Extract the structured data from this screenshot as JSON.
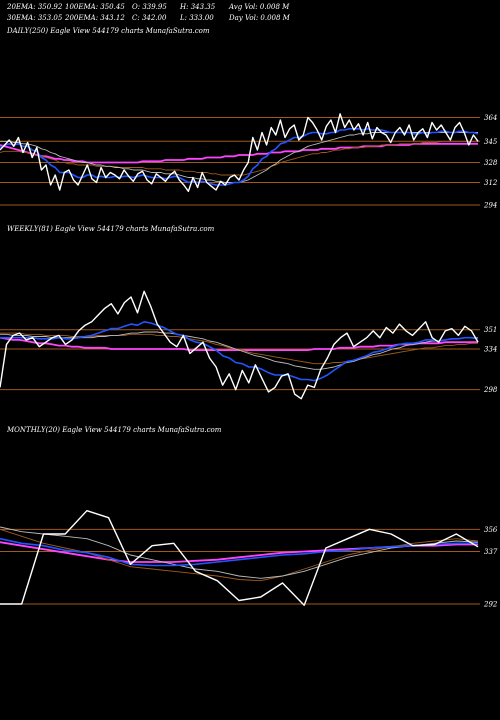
{
  "header": {
    "row1": [
      "20EMA: 350.92",
      "100EMA: 350.45",
      "O: 339.95",
      "H: 343.35",
      "Avg Vol: 0.008  M"
    ],
    "row2": [
      "30EMA: 353.05",
      "200EMA: 343.12",
      "C: 342.00",
      "L: 333.00",
      "Day Vol: 0.008  M"
    ]
  },
  "colors": {
    "price": "#ffffff",
    "ema_fast": "#2255ff",
    "ema_long": "#ff44ff",
    "ema_brown": "#a05a1a",
    "ema_grey": "#bbbbbb",
    "level_line": "#a05a1a"
  },
  "chart_data": [
    {
      "type": "line",
      "title": "DAILY(250) Eagle  View  544179 charts MunafaSutra.com",
      "levels": [
        "364",
        "345",
        "328",
        "312",
        "294"
      ],
      "level_values": [
        364,
        345,
        328,
        312,
        294
      ],
      "ylim": [
        282,
        378
      ],
      "series": [
        {
          "key": "price",
          "values": [
            338,
            342,
            346,
            341,
            348,
            336,
            344,
            332,
            340,
            322,
            326,
            310,
            318,
            306,
            320,
            322,
            314,
            310,
            318,
            326,
            315,
            312,
            324,
            316,
            320,
            318,
            315,
            322,
            317,
            313,
            319,
            321,
            314,
            311,
            319,
            316,
            313,
            318,
            321,
            314,
            310,
            305,
            316,
            308,
            320,
            312,
            309,
            306,
            313,
            310,
            316,
            318,
            314,
            322,
            328,
            348,
            338,
            352,
            342,
            356,
            350,
            362,
            348,
            355,
            358,
            346,
            350,
            364,
            360,
            354,
            346,
            357,
            362,
            352,
            367,
            356,
            362,
            354,
            359,
            350,
            360,
            347,
            356,
            352,
            350,
            344,
            352,
            356,
            350,
            358,
            346,
            352,
            355,
            348,
            360,
            354,
            358,
            352,
            346,
            356,
            360,
            352,
            342,
            350,
            345
          ]
        },
        {
          "key": "ema_fast",
          "values": [
            340,
            342,
            343,
            342,
            343,
            341,
            341,
            338,
            337,
            332,
            330,
            326,
            324,
            320,
            320,
            320,
            318,
            316,
            316,
            318,
            318,
            316,
            317,
            316,
            316,
            317,
            316,
            317,
            317,
            316,
            317,
            318,
            317,
            316,
            316,
            316,
            315,
            316,
            317,
            316,
            314,
            312,
            313,
            312,
            313,
            312,
            311,
            310,
            310,
            310,
            311,
            312,
            312,
            314,
            317,
            323,
            326,
            331,
            333,
            337,
            339,
            343,
            344,
            346,
            348,
            348,
            349,
            351,
            352,
            352,
            351,
            351,
            352,
            352,
            354,
            354,
            355,
            355,
            355,
            354,
            355,
            354,
            354,
            354,
            353,
            352,
            352,
            352,
            352,
            352,
            351,
            351,
            352,
            351,
            352,
            352,
            353,
            353,
            352,
            352,
            353,
            353,
            352,
            352,
            351
          ]
        },
        {
          "key": "ema_brown",
          "values": [
            336,
            337,
            337,
            337,
            337,
            336,
            336,
            335,
            334,
            333,
            332,
            331,
            330,
            328,
            328,
            327,
            327,
            326,
            326,
            326,
            326,
            325,
            325,
            325,
            325,
            325,
            324,
            324,
            324,
            324,
            324,
            324,
            323,
            323,
            323,
            323,
            322,
            322,
            322,
            322,
            321,
            321,
            321,
            320,
            320,
            320,
            319,
            319,
            318,
            318,
            318,
            318,
            318,
            318,
            319,
            320,
            321,
            322,
            323,
            325,
            326,
            328,
            329,
            330,
            331,
            332,
            333,
            334,
            335,
            335,
            336,
            336,
            337,
            338,
            338,
            339,
            339,
            340,
            340,
            340,
            341,
            341,
            341,
            342,
            342,
            342,
            342,
            343,
            343,
            343,
            343,
            343,
            344,
            344,
            344,
            344,
            345,
            345,
            345,
            345,
            345,
            345,
            345,
            345,
            345
          ]
        },
        {
          "key": "ema_grey",
          "values": [
            345,
            345,
            345,
            344,
            344,
            343,
            343,
            342,
            341,
            339,
            338,
            336,
            335,
            333,
            332,
            331,
            330,
            329,
            328,
            328,
            327,
            326,
            326,
            325,
            325,
            324,
            324,
            323,
            323,
            322,
            322,
            322,
            321,
            320,
            320,
            320,
            319,
            319,
            319,
            318,
            317,
            316,
            316,
            315,
            315,
            314,
            314,
            313,
            313,
            312,
            312,
            312,
            312,
            313,
            314,
            316,
            318,
            320,
            322,
            325,
            327,
            330,
            332,
            334,
            336,
            337,
            339,
            341,
            342,
            343,
            344,
            345,
            346,
            347,
            348,
            349,
            350,
            350,
            351,
            351,
            351,
            352,
            352,
            352,
            352,
            352,
            352,
            352,
            352,
            352,
            352,
            352,
            352,
            352,
            352,
            352,
            352,
            352,
            352,
            352,
            352,
            352,
            352,
            352,
            352
          ]
        },
        {
          "key": "ema_long",
          "values": [
            342,
            341,
            340,
            339,
            338,
            337,
            336,
            335,
            334,
            333,
            333,
            332,
            331,
            331,
            330,
            330,
            329,
            329,
            329,
            328,
            328,
            328,
            328,
            328,
            328,
            328,
            328,
            328,
            328,
            328,
            328,
            329,
            329,
            329,
            329,
            329,
            330,
            330,
            330,
            330,
            330,
            331,
            331,
            331,
            331,
            332,
            332,
            332,
            332,
            333,
            333,
            333,
            334,
            334,
            334,
            334,
            335,
            335,
            335,
            336,
            336,
            336,
            337,
            337,
            337,
            337,
            338,
            338,
            338,
            338,
            339,
            339,
            339,
            339,
            340,
            340,
            340,
            340,
            340,
            341,
            341,
            341,
            341,
            341,
            342,
            342,
            342,
            342,
            342,
            342,
            343,
            343,
            343,
            343,
            343,
            343,
            343,
            343,
            343,
            343,
            343,
            343,
            343,
            343,
            343
          ]
        }
      ]
    },
    {
      "type": "line",
      "title": "WEEKLY(81) Eagle  View  544179 charts MunafaSutra.com",
      "levels": [
        "351",
        "334",
        "298"
      ],
      "level_values": [
        351,
        334,
        298
      ],
      "ylim": [
        280,
        395
      ],
      "series": [
        {
          "key": "price",
          "values": [
            300,
            338,
            346,
            348,
            342,
            344,
            336,
            340,
            344,
            346,
            338,
            342,
            350,
            355,
            358,
            364,
            370,
            374,
            365,
            375,
            380,
            366,
            385,
            372,
            356,
            348,
            340,
            336,
            346,
            330,
            335,
            340,
            326,
            318,
            302,
            312,
            298,
            315,
            304,
            320,
            308,
            296,
            300,
            310,
            312,
            294,
            290,
            302,
            300,
            316,
            326,
            338,
            344,
            348,
            336,
            340,
            344,
            350,
            344,
            353,
            348,
            356,
            350,
            346,
            352,
            358,
            344,
            340,
            350,
            352,
            346,
            354,
            350,
            340
          ]
        },
        {
          "key": "ema_fast",
          "values": [
            344,
            344,
            344,
            344,
            344,
            344,
            343,
            343,
            343,
            344,
            343,
            343,
            344,
            345,
            346,
            348,
            350,
            352,
            352,
            354,
            356,
            355,
            358,
            357,
            355,
            353,
            350,
            347,
            346,
            342,
            340,
            339,
            336,
            333,
            328,
            326,
            322,
            321,
            318,
            318,
            316,
            313,
            311,
            311,
            311,
            309,
            307,
            307,
            306,
            308,
            311,
            315,
            319,
            323,
            324,
            326,
            328,
            331,
            332,
            334,
            336,
            338,
            339,
            339,
            340,
            342,
            342,
            341,
            342,
            343,
            343,
            344,
            344,
            343
          ]
        },
        {
          "key": "ema_brown",
          "values": [
            348,
            348,
            348,
            348,
            347,
            347,
            347,
            346,
            346,
            346,
            346,
            345,
            345,
            345,
            345,
            346,
            346,
            346,
            346,
            346,
            347,
            347,
            347,
            347,
            346,
            346,
            345,
            345,
            344,
            343,
            342,
            341,
            340,
            338,
            337,
            335,
            334,
            333,
            331,
            330,
            329,
            328,
            327,
            326,
            325,
            324,
            323,
            322,
            321,
            321,
            321,
            322,
            322,
            323,
            324,
            325,
            326,
            327,
            328,
            329,
            330,
            331,
            332,
            333,
            334,
            335,
            335,
            336,
            337,
            337,
            338,
            338,
            339,
            339
          ]
        },
        {
          "key": "ema_grey",
          "values": [
            347,
            347,
            346,
            346,
            346,
            345,
            345,
            345,
            344,
            344,
            344,
            344,
            344,
            344,
            344,
            345,
            345,
            346,
            346,
            347,
            348,
            348,
            349,
            349,
            349,
            348,
            348,
            347,
            346,
            345,
            344,
            343,
            341,
            340,
            338,
            336,
            334,
            332,
            330,
            328,
            327,
            325,
            323,
            322,
            321,
            319,
            318,
            317,
            316,
            316,
            317,
            318,
            320,
            322,
            323,
            325,
            327,
            329,
            330,
            332,
            334,
            335,
            337,
            338,
            339,
            340,
            341,
            341,
            342,
            343,
            343,
            344,
            344,
            344
          ]
        },
        {
          "key": "ema_long",
          "values": [
            344,
            343,
            342,
            342,
            341,
            340,
            339,
            339,
            338,
            337,
            337,
            336,
            336,
            335,
            335,
            335,
            335,
            334,
            334,
            334,
            334,
            334,
            334,
            334,
            334,
            334,
            334,
            334,
            334,
            333,
            333,
            333,
            333,
            333,
            333,
            333,
            333,
            333,
            333,
            333,
            333,
            333,
            333,
            333,
            333,
            333,
            333,
            333,
            334,
            334,
            334,
            334,
            335,
            335,
            335,
            336,
            336,
            336,
            337,
            337,
            337,
            338,
            338,
            338,
            339,
            339,
            339,
            339,
            340,
            340,
            340,
            340,
            340,
            340
          ]
        }
      ]
    },
    {
      "type": "line",
      "title": "MONTHLY(20) Eagle  View  544179 charts MunafaSutra.com",
      "levels": [
        "356",
        "337",
        "292"
      ],
      "level_values": [
        356,
        337,
        292
      ],
      "ylim": [
        280,
        400
      ],
      "series": [
        {
          "key": "price",
          "values": [
            292,
            292,
            352,
            352,
            372,
            366,
            326,
            342,
            344,
            320,
            312,
            295,
            298,
            310,
            291,
            340,
            348,
            356,
            352,
            342,
            343,
            352,
            341
          ]
        },
        {
          "key": "ema_fast",
          "values": [
            348,
            344,
            342,
            338,
            336,
            332,
            326,
            325,
            325,
            326,
            328,
            330,
            332,
            334,
            335,
            337,
            338,
            340,
            341,
            342,
            343,
            344,
            344
          ]
        },
        {
          "key": "ema_brown",
          "values": [
            356,
            350,
            344,
            340,
            336,
            330,
            324,
            322,
            320,
            318,
            316,
            313,
            312,
            316,
            322,
            328,
            334,
            338,
            341,
            344,
            346,
            348,
            346
          ]
        },
        {
          "key": "ema_grey",
          "values": [
            358,
            354,
            352,
            350,
            348,
            342,
            334,
            330,
            326,
            322,
            320,
            316,
            314,
            316,
            320,
            326,
            332,
            336,
            340,
            342,
            344,
            346,
            345
          ]
        },
        {
          "key": "ema_long",
          "values": [
            345,
            342,
            339,
            336,
            333,
            330,
            328,
            328,
            328,
            329,
            330,
            332,
            334,
            336,
            337,
            338,
            339,
            340,
            341,
            342,
            342,
            343,
            343
          ]
        }
      ]
    }
  ]
}
